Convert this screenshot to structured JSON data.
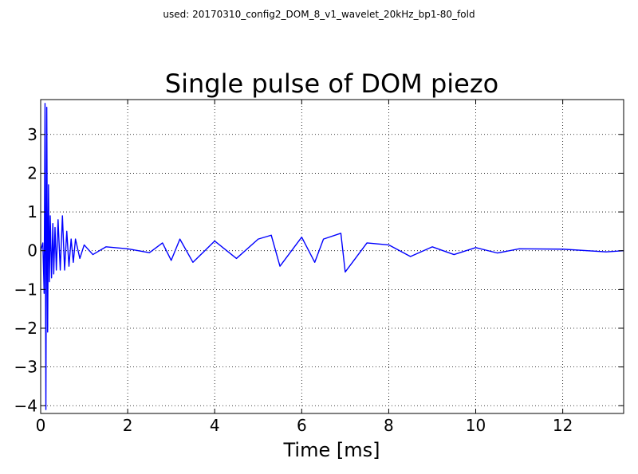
{
  "figure": {
    "suptitle": "used: 20170310_config2_DOM_8_v1_wavelet_20kHz_bp1-80_fold"
  },
  "chart_data": {
    "type": "line",
    "title": "Single pulse of DOM piezo",
    "xlabel": "Time [ms]",
    "ylabel": "",
    "xlim": [
      0,
      13.4
    ],
    "ylim": [
      -4.2,
      3.9
    ],
    "grid": true,
    "grid_style": "dotted",
    "xticks": [
      0,
      2,
      4,
      6,
      8,
      10,
      12
    ],
    "yticks": [
      3,
      2,
      1,
      0,
      -1,
      -2,
      -3,
      -4
    ],
    "xtick_labels": [
      "0",
      "2",
      "4",
      "6",
      "8",
      "10",
      "12"
    ],
    "ytick_labels": [
      "3",
      "2",
      "1",
      "0",
      "−1",
      "−2",
      "−3",
      "−4"
    ],
    "series": [
      {
        "color": "#0000ff",
        "description": "single piezo pulse waveform, 20 kHz sampling",
        "x": [
          0.0,
          0.05,
          0.08,
          0.1,
          0.12,
          0.14,
          0.16,
          0.18,
          0.2,
          0.22,
          0.25,
          0.28,
          0.3,
          0.33,
          0.36,
          0.4,
          0.45,
          0.5,
          0.55,
          0.6,
          0.65,
          0.7,
          0.75,
          0.8,
          0.9,
          1.0,
          1.2,
          1.5,
          2.0,
          2.5,
          2.8,
          3.0,
          3.2,
          3.5,
          4.0,
          4.5,
          5.0,
          5.3,
          5.5,
          6.0,
          6.3,
          6.5,
          6.9,
          7.0,
          7.5,
          8.0,
          8.5,
          9.0,
          9.5,
          10.0,
          10.5,
          11.0,
          12.0,
          13.0,
          13.4
        ],
        "y": [
          0.0,
          0.2,
          -1.1,
          3.8,
          -4.1,
          3.7,
          -2.1,
          1.7,
          -0.8,
          0.9,
          -0.7,
          0.7,
          -0.6,
          0.6,
          -0.5,
          0.8,
          -0.5,
          0.9,
          -0.5,
          0.5,
          -0.4,
          0.3,
          -0.3,
          0.3,
          -0.2,
          0.15,
          -0.1,
          0.1,
          0.05,
          -0.05,
          0.2,
          -0.25,
          0.3,
          -0.3,
          0.25,
          -0.2,
          0.3,
          0.4,
          -0.4,
          0.35,
          -0.3,
          0.3,
          0.45,
          -0.55,
          0.2,
          0.15,
          -0.15,
          0.1,
          -0.1,
          0.08,
          -0.06,
          0.05,
          0.04,
          -0.03,
          0.0
        ]
      }
    ]
  }
}
